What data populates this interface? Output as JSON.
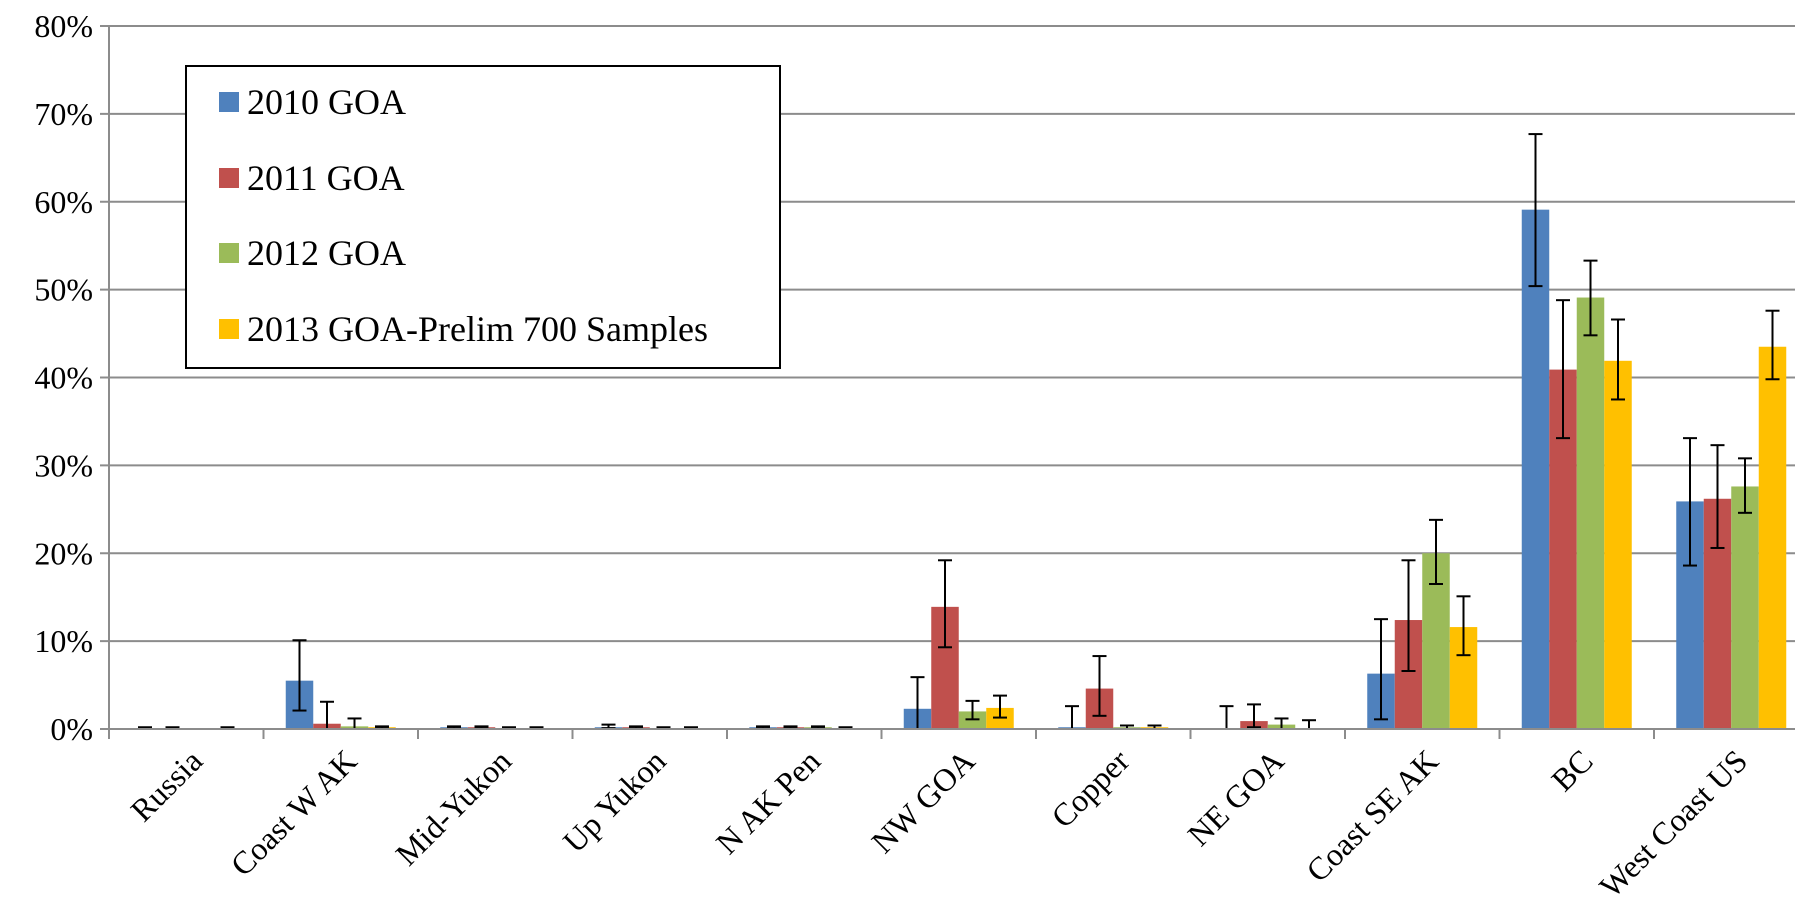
{
  "chart_data": {
    "type": "bar",
    "title": "",
    "xlabel": "",
    "ylabel": "",
    "ylim": [
      0,
      80
    ],
    "y_unit": "%",
    "y_ticks": [
      "0%",
      "10%",
      "20%",
      "30%",
      "40%",
      "50%",
      "60%",
      "70%",
      "80%"
    ],
    "grid": true,
    "legend_position": "top-left",
    "categories": [
      "Russia",
      "Coast W AK",
      "Mid-Yukon",
      "Up Yukon",
      "N AK Pen",
      "NW GOA",
      "Copper",
      "NE GOA",
      "Coast SE AK",
      "BC",
      "West Coast US"
    ],
    "series": [
      {
        "name": "2010 GOA",
        "color": "#4F81BD",
        "values": [
          0.1,
          5.5,
          0.2,
          0.2,
          0.2,
          2.3,
          0.2,
          0.1,
          6.3,
          59.1,
          25.9
        ],
        "err_low": [
          0.1,
          2.1,
          0.1,
          0.1,
          0.1,
          0.0,
          0.0,
          0.0,
          1.1,
          50.4,
          18.6
        ],
        "err_high": [
          0.2,
          10.1,
          0.3,
          0.5,
          0.3,
          5.9,
          2.6,
          2.6,
          12.5,
          67.7,
          33.1
        ]
      },
      {
        "name": "2011 GOA",
        "color": "#C0504D",
        "values": [
          0.1,
          0.6,
          0.2,
          0.2,
          0.2,
          13.9,
          4.6,
          0.9,
          12.4,
          40.9,
          26.2
        ],
        "err_low": [
          0.0,
          0.0,
          0.1,
          0.1,
          0.1,
          9.3,
          1.5,
          0.2,
          6.6,
          33.1,
          20.6
        ],
        "err_high": [
          0.2,
          3.1,
          0.3,
          0.3,
          0.3,
          19.2,
          8.3,
          2.8,
          19.2,
          48.8,
          32.3
        ]
      },
      {
        "name": "2012 GOA",
        "color": "#9BBB59",
        "values": [
          0.0,
          0.3,
          0.1,
          0.1,
          0.2,
          2.0,
          0.2,
          0.5,
          20.0,
          49.1,
          27.6
        ],
        "err_low": [
          0.0,
          0.0,
          0.0,
          0.0,
          0.1,
          1.1,
          0.0,
          0.0,
          16.5,
          44.8,
          24.6
        ],
        "err_high": [
          0.0,
          1.2,
          0.2,
          0.2,
          0.3,
          3.2,
          0.4,
          1.2,
          23.8,
          53.3,
          30.8
        ]
      },
      {
        "name": "2013 GOA-Prelim 700 Samples",
        "color": "#FFC000",
        "values": [
          0.1,
          0.2,
          0.1,
          0.1,
          0.1,
          2.4,
          0.2,
          0.1,
          11.6,
          41.9,
          43.5
        ],
        "err_low": [
          0.0,
          0.1,
          0.0,
          0.0,
          0.0,
          1.3,
          0.0,
          0.0,
          8.4,
          37.5,
          39.8
        ],
        "err_high": [
          0.2,
          0.3,
          0.2,
          0.2,
          0.2,
          3.8,
          0.4,
          1.0,
          15.1,
          46.6,
          47.6
        ]
      }
    ]
  }
}
